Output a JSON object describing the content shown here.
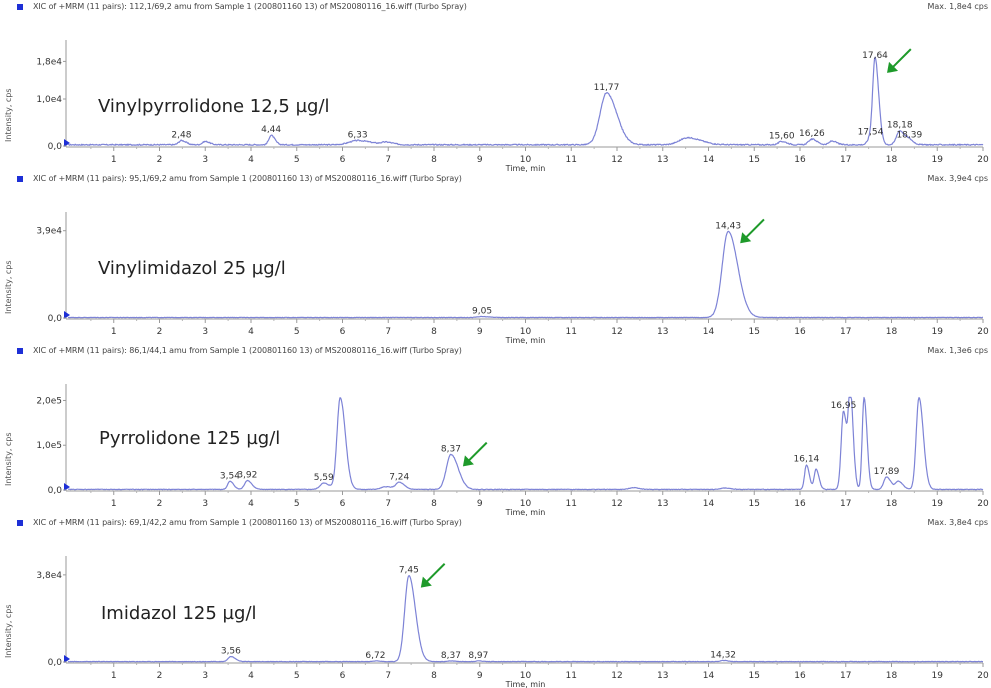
{
  "chart_data": [
    {
      "type": "line",
      "header": "XIC of +MRM (11 pairs): 112,1/69,2 amu from Sample 1 (200801160 13) of MS20080116_16.wiff (Turbo Spray)",
      "max_label": "Max. 1,8e4 cps",
      "compound_label": "Vinylpyrrolidone 12,5 µg/l",
      "xlabel": "Time, min",
      "ylabel": "Intensity, cps",
      "xlim": [
        0,
        20
      ],
      "ylim": [
        0,
        20000
      ],
      "yticks": [
        {
          "value": 0,
          "label": "0,0"
        },
        {
          "value": 10000,
          "label": "1,0e4"
        },
        {
          "value": 18000,
          "label": "1,8e4"
        }
      ],
      "xticks": [
        "1",
        "2",
        "3",
        "4",
        "5",
        "6",
        "7",
        "8",
        "9",
        "10",
        "11",
        "12",
        "13",
        "14",
        "15",
        "16",
        "17",
        "18",
        "19",
        "20"
      ],
      "peaks": [
        {
          "time": 2.48,
          "label": "2,48",
          "height": 900,
          "width": 0.06
        },
        {
          "time": 3.0,
          "label": "",
          "height": 700,
          "width": 0.06
        },
        {
          "time": 4.44,
          "label": "4,44",
          "height": 2000,
          "width": 0.05
        },
        {
          "time": 6.33,
          "label": "6,33",
          "height": 900,
          "width": 0.18
        },
        {
          "time": 6.95,
          "label": "",
          "height": 500,
          "width": 0.1
        },
        {
          "time": 11.77,
          "label": "11,77",
          "height": 11000,
          "width": 0.14
        },
        {
          "time": 13.55,
          "label": "",
          "height": 1500,
          "width": 0.18
        },
        {
          "time": 15.6,
          "label": "15,60",
          "height": 700,
          "width": 0.07
        },
        {
          "time": 16.26,
          "label": "16,26",
          "height": 1200,
          "width": 0.07
        },
        {
          "time": 16.7,
          "label": "",
          "height": 800,
          "width": 0.06
        },
        {
          "time": 17.54,
          "label": "17,54",
          "height": 1500,
          "width": 0.06
        },
        {
          "time": 17.64,
          "label": "17,64",
          "height": 17800,
          "width": 0.05
        },
        {
          "time": 18.18,
          "label": "18,18",
          "height": 3000,
          "width": 0.07
        },
        {
          "time": 18.39,
          "label": "18,39",
          "height": 900,
          "width": 0.06
        }
      ],
      "noise": 300,
      "arrow_target": 17.64,
      "arrow_color": "#1e9a2a",
      "line_color": "#7d83d6"
    },
    {
      "type": "line",
      "header": "XIC of +MRM (11 pairs): 95,1/69,2 amu from Sample 1 (200801160 13) of MS20080116_16.wiff (Turbo Spray)",
      "max_label": "Max. 3,9e4 cps",
      "compound_label": "Vinylimidazol 25 µg/l",
      "xlabel": "Time, min",
      "ylabel": "Intensity, cps",
      "xlim": [
        0,
        20
      ],
      "ylim": [
        0,
        42000
      ],
      "yticks": [
        {
          "value": 0,
          "label": "0,0"
        },
        {
          "value": 39000,
          "label": "3,9e4"
        }
      ],
      "xticks": [
        "1",
        "2",
        "3",
        "4",
        "5",
        "6",
        "7",
        "8",
        "9",
        "10",
        "11",
        "12",
        "13",
        "14",
        "15",
        "16",
        "17",
        "18",
        "19",
        "20"
      ],
      "peaks": [
        {
          "time": 9.05,
          "label": "9,05",
          "height": 400,
          "width": 0.1
        },
        {
          "time": 14.43,
          "label": "14,43",
          "height": 38500,
          "width": 0.13
        }
      ],
      "noise": 250,
      "arrow_target": 14.43,
      "arrow_color": "#1e9a2a",
      "line_color": "#7d83d6"
    },
    {
      "type": "line",
      "header": "XIC of +MRM (11 pairs): 86,1/44,1 amu from Sample 1 (200801160 13) of MS20080116_16.wiff (Turbo Spray)",
      "max_label": "Max. 1,3e6 cps",
      "compound_label": "Pyrrolidone 125 µg/l",
      "xlabel": "Time, min",
      "ylabel": "Intensity, cps",
      "xlim": [
        0,
        20
      ],
      "ylim": [
        0,
        210000
      ],
      "yticks": [
        {
          "value": 0,
          "label": "0,0"
        },
        {
          "value": 100000,
          "label": "1,0e5"
        },
        {
          "value": 200000,
          "label": "2,0e5"
        }
      ],
      "xticks": [
        "1",
        "2",
        "3",
        "4",
        "5",
        "6",
        "7",
        "8",
        "9",
        "10",
        "11",
        "12",
        "13",
        "14",
        "15",
        "16",
        "17",
        "18",
        "19",
        "20"
      ],
      "peaks": [
        {
          "time": 3.54,
          "label": "3,54",
          "height": 18000,
          "width": 0.05
        },
        {
          "time": 3.92,
          "label": "3,92",
          "height": 20000,
          "width": 0.06
        },
        {
          "time": 5.59,
          "label": "5,59",
          "height": 14000,
          "width": 0.08
        },
        {
          "time": 5.95,
          "label": "",
          "height": 205000,
          "width": 0.07
        },
        {
          "time": 6.95,
          "label": "",
          "height": 6000,
          "width": 0.1
        },
        {
          "time": 7.24,
          "label": "7,24",
          "height": 15000,
          "width": 0.07
        },
        {
          "time": 8.37,
          "label": "8,37",
          "height": 78000,
          "width": 0.1
        },
        {
          "time": 12.35,
          "label": "",
          "height": 4000,
          "width": 0.08
        },
        {
          "time": 14.35,
          "label": "",
          "height": 3000,
          "width": 0.08
        },
        {
          "time": 16.14,
          "label": "16,14",
          "height": 55000,
          "width": 0.04
        },
        {
          "time": 16.35,
          "label": "",
          "height": 45000,
          "width": 0.04
        },
        {
          "time": 16.95,
          "label": "16,95",
          "height": 175000,
          "width": 0.05
        },
        {
          "time": 17.1,
          "label": "",
          "height": 205000,
          "width": 0.04
        },
        {
          "time": 17.4,
          "label": "",
          "height": 205000,
          "width": 0.04
        },
        {
          "time": 17.89,
          "label": "17,89",
          "height": 28000,
          "width": 0.06
        },
        {
          "time": 18.15,
          "label": "",
          "height": 18000,
          "width": 0.06
        },
        {
          "time": 18.6,
          "label": "",
          "height": 205000,
          "width": 0.06
        }
      ],
      "noise": 1500,
      "arrow_target": 8.37,
      "arrow_color": "#1e9a2a",
      "line_color": "#7d83d6"
    },
    {
      "type": "line",
      "header": "XIC of +MRM (11 pairs): 69,1/42,2 amu from Sample 1 (200801160 13) of MS20080116_16.wiff (Turbo Spray)",
      "max_label": "Max. 3,8e4 cps",
      "compound_label": "Imidazol 125 µg/l",
      "xlabel": "Time, min",
      "ylabel": "Intensity, cps",
      "xlim": [
        0,
        20
      ],
      "ylim": [
        0,
        41000
      ],
      "yticks": [
        {
          "value": 0,
          "label": "0,0"
        },
        {
          "value": 38000,
          "label": "3,8e4"
        }
      ],
      "xticks": [
        "1",
        "2",
        "3",
        "4",
        "5",
        "6",
        "7",
        "8",
        "9",
        "10",
        "11",
        "12",
        "13",
        "14",
        "15",
        "16",
        "17",
        "18",
        "19",
        "20"
      ],
      "peaks": [
        {
          "time": 3.56,
          "label": "3,56",
          "height": 2200,
          "width": 0.06
        },
        {
          "time": 6.72,
          "label": "6,72",
          "height": 300,
          "width": 0.06
        },
        {
          "time": 7.45,
          "label": "7,45",
          "height": 37500,
          "width": 0.09
        },
        {
          "time": 8.37,
          "label": "8,37",
          "height": 300,
          "width": 0.06
        },
        {
          "time": 8.97,
          "label": "8,97",
          "height": 300,
          "width": 0.06
        },
        {
          "time": 14.32,
          "label": "14,32",
          "height": 500,
          "width": 0.06
        }
      ],
      "noise": 200,
      "arrow_target": 7.45,
      "arrow_color": "#1e9a2a",
      "line_color": "#7d83d6"
    }
  ]
}
